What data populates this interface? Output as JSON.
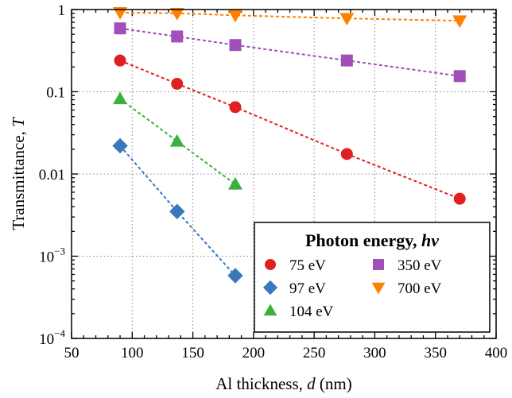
{
  "chart_data": {
    "type": "scatter",
    "xlabel": {
      "prefix": "Al thickness, ",
      "var": "d",
      "suffix": " (nm)"
    },
    "ylabel": {
      "prefix": "Transmittance, ",
      "var": "T"
    },
    "xlim": [
      50,
      400
    ],
    "ylim": [
      0.0001,
      1
    ],
    "yscale": "log",
    "xticks": [
      50,
      100,
      150,
      200,
      250,
      300,
      350,
      400
    ],
    "xtick_labels": [
      "50",
      "100",
      "150",
      "200",
      "250",
      "300",
      "350",
      "400"
    ],
    "yticks": [
      1,
      0.1,
      0.01,
      0.001,
      0.0001
    ],
    "ytick_labels": [
      {
        "base": "1",
        "exp": ""
      },
      {
        "base": "0.1",
        "exp": ""
      },
      {
        "base": "0.01",
        "exp": ""
      },
      {
        "base": "10",
        "exp": "−3"
      },
      {
        "base": "10",
        "exp": "−4"
      }
    ],
    "grid": true,
    "grid_style": "dotted",
    "legend": {
      "title_prefix": "Photon energy, ",
      "title_var": "hv",
      "placement": "bottom-right",
      "columns": 2
    },
    "series": [
      {
        "name": "75 eV",
        "color": "#e02020",
        "marker": "circle",
        "line": "dashed",
        "x": [
          90,
          137,
          185,
          277,
          370
        ],
        "y": [
          0.24,
          0.125,
          0.065,
          0.0175,
          0.005
        ]
      },
      {
        "name": "97 eV",
        "color": "#3a78bb",
        "marker": "diamond",
        "line": "dashed",
        "x": [
          90,
          137,
          185
        ],
        "y": [
          0.022,
          0.0035,
          0.00058
        ]
      },
      {
        "name": "104 eV",
        "color": "#3cb03c",
        "marker": "triangle-up",
        "line": "dashed",
        "x": [
          90,
          137,
          185
        ],
        "y": [
          0.082,
          0.025,
          0.0075
        ]
      },
      {
        "name": "350 eV",
        "color": "#a050b8",
        "marker": "square",
        "line": "dashed",
        "x": [
          90,
          137,
          185,
          277,
          370
        ],
        "y": [
          0.59,
          0.47,
          0.37,
          0.24,
          0.155
        ]
      },
      {
        "name": "700 eV",
        "color": "#ff8000",
        "marker": "triangle-down",
        "line": "dashed",
        "x": [
          90,
          137,
          185,
          277,
          370
        ],
        "y": [
          0.92,
          0.9,
          0.85,
          0.78,
          0.73
        ]
      }
    ]
  }
}
